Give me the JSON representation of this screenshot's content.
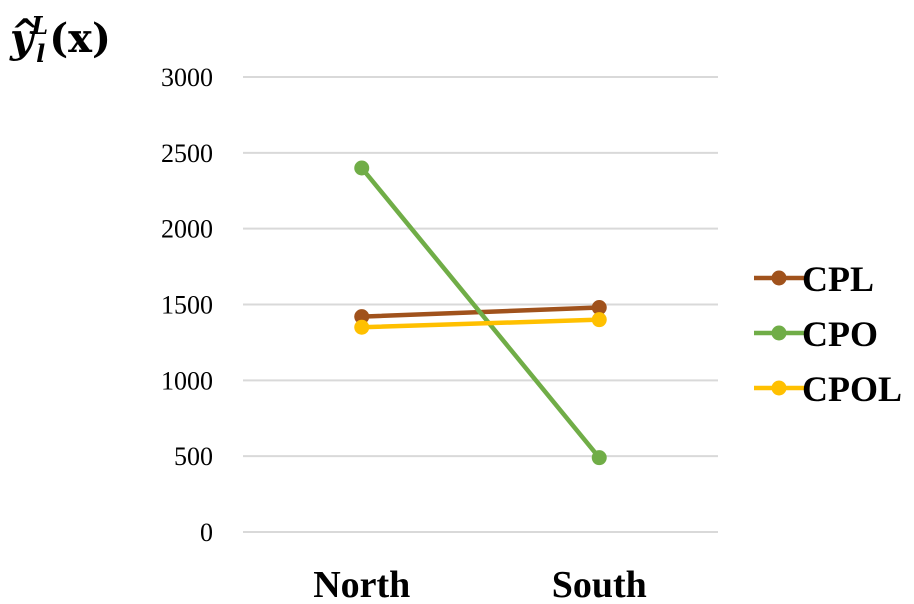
{
  "chart_data": {
    "type": "line",
    "ylabel": {
      "hat": "^",
      "base": "y",
      "sup": "L",
      "sub": "l",
      "arg": "(x)"
    },
    "categories": [
      "North",
      "South"
    ],
    "ylim": [
      0,
      3000
    ],
    "yticks": [
      0,
      500,
      1000,
      1500,
      2000,
      2500,
      3000
    ],
    "grid": true,
    "legend_position": "right",
    "series": [
      {
        "name": "CPL",
        "color": "#A0521C",
        "values": [
          1420,
          1480
        ]
      },
      {
        "name": "CPO",
        "color": "#70AD47",
        "values": [
          2400,
          490
        ]
      },
      {
        "name": "CPOL",
        "color": "#FFC000",
        "values": [
          1350,
          1400
        ]
      }
    ]
  }
}
